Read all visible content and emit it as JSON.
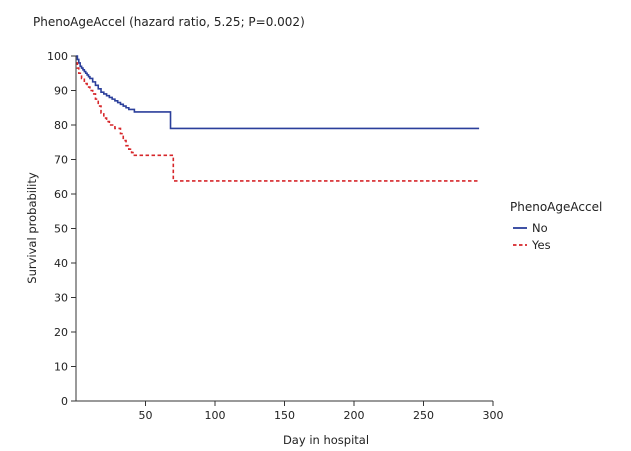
{
  "chart_data": {
    "type": "line",
    "subtype": "kaplan-meier survival curve",
    "title": "PhenoAgeAccel (hazard ratio, 5.25; P=0.002)",
    "xlabel": "Day in hospital",
    "ylabel": "Survival probability",
    "xlim": [
      0,
      300
    ],
    "ylim": [
      0,
      100
    ],
    "xticks": [
      50,
      100,
      150,
      200,
      250,
      300
    ],
    "yticks": [
      0,
      10,
      20,
      30,
      40,
      50,
      60,
      70,
      80,
      90,
      100
    ],
    "grid": false,
    "legend": {
      "title": "PhenoAgeAccel",
      "placement": "right"
    },
    "series": [
      {
        "name": "No",
        "color": "#2b3f9b",
        "line_style": "solid",
        "x": [
          0,
          1,
          2,
          3,
          4,
          5,
          6,
          7,
          8,
          9,
          10,
          12,
          14,
          16,
          18,
          20,
          22,
          24,
          26,
          28,
          30,
          32,
          34,
          36,
          38,
          42,
          68,
          68,
          290
        ],
        "y": [
          100,
          99,
          98,
          97,
          96.5,
          96,
          95.5,
          95,
          94.5,
          94,
          93.5,
          92.5,
          91.5,
          90.5,
          89.5,
          89,
          88.5,
          88,
          87.5,
          87,
          86.5,
          86,
          85.5,
          85,
          84.5,
          83.8,
          83.8,
          79,
          79
        ]
      },
      {
        "name": "Yes",
        "color": "#d6262a",
        "line_style": "dashed",
        "x": [
          0,
          1,
          2,
          4,
          6,
          8,
          10,
          12,
          14,
          16,
          18,
          20,
          22,
          24,
          28,
          32,
          34,
          36,
          38,
          40,
          42,
          68,
          70,
          290
        ],
        "y": [
          98,
          96.5,
          95,
          93.5,
          92,
          91,
          90,
          89,
          87.5,
          85.5,
          83.5,
          82,
          81,
          80,
          79,
          77.5,
          75.5,
          74,
          73,
          72,
          71.2,
          71.2,
          63.8,
          63.8
        ]
      }
    ]
  }
}
